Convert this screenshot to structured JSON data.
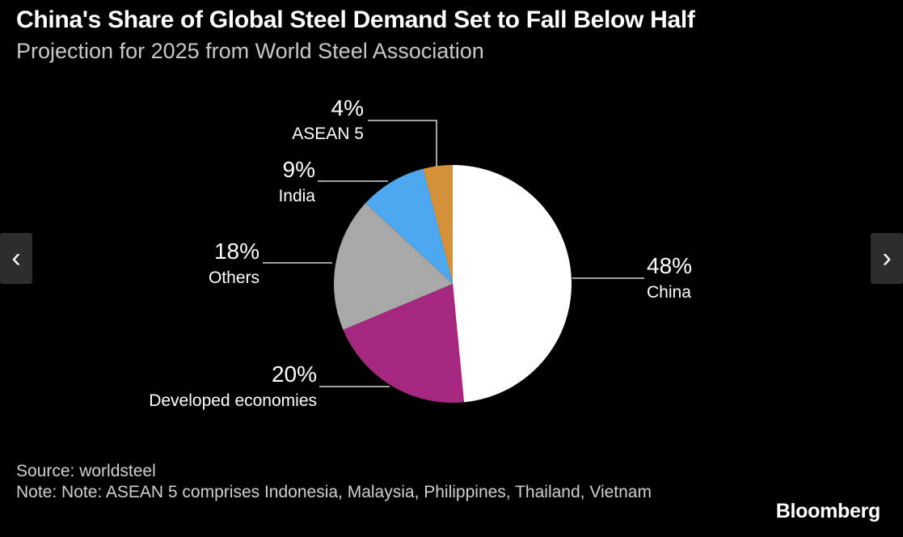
{
  "title": "China's Share of Global Steel Demand Set to Fall Below Half",
  "subtitle": "Projection for 2025 from World Steel Association",
  "chart_data": {
    "type": "pie",
    "slices": [
      {
        "name": "China",
        "value": 48,
        "label": "48%",
        "color": "#ffffff"
      },
      {
        "name": "Developed economies",
        "value": 20,
        "label": "20%",
        "color": "#a5277f"
      },
      {
        "name": "Others",
        "value": 18,
        "label": "18%",
        "color": "#a8a8a8"
      },
      {
        "name": "India",
        "value": 9,
        "label": "9%",
        "color": "#4ea8f0"
      },
      {
        "name": "ASEAN 5",
        "value": 4,
        "label": "4%",
        "color": "#d5903a"
      }
    ],
    "start": "12 o'clock",
    "direction": "clockwise"
  },
  "footer": {
    "source": "Source: worldsteel",
    "note": "Note: Note: ASEAN 5 comprises Indonesia, Malaysia, Philippines, Thailand, Vietnam"
  },
  "brand": "Bloomberg",
  "nav": {
    "prev_icon": "chevron-left-icon",
    "next_icon": "chevron-right-icon",
    "prev_glyph": "‹",
    "next_glyph": "›"
  }
}
